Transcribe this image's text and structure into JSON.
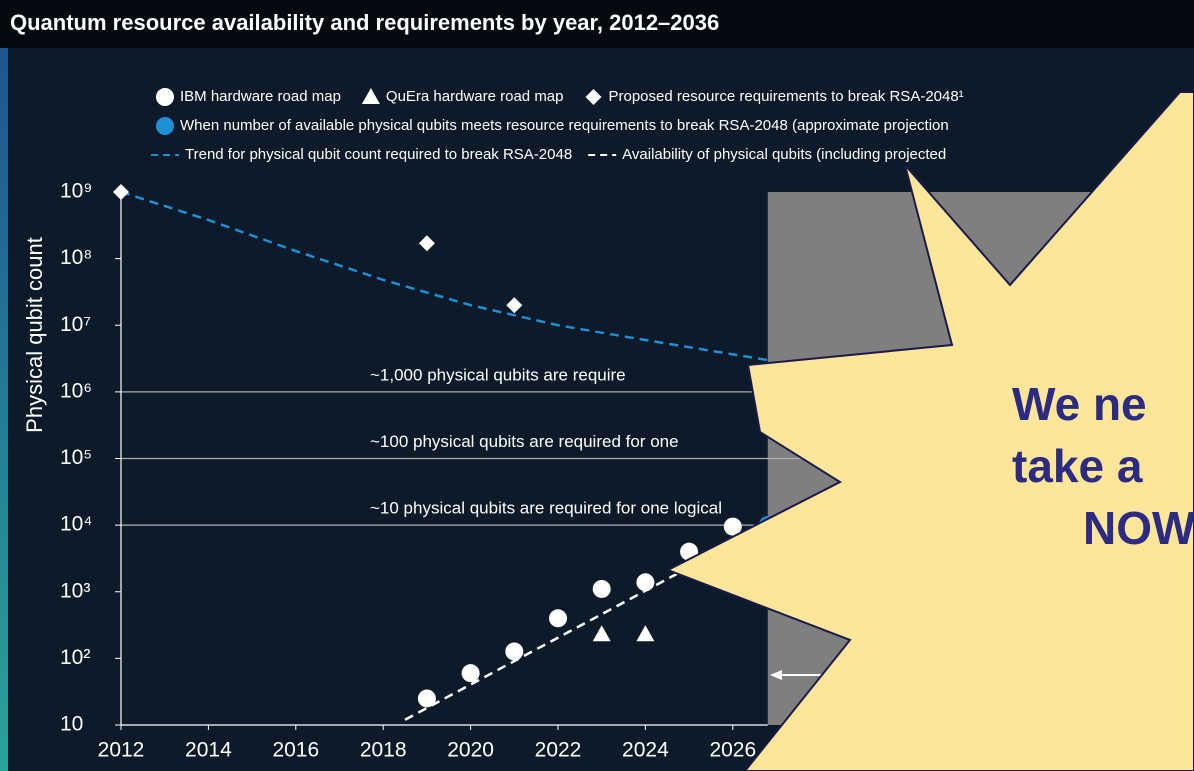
{
  "chart_data": {
    "type": "scatter",
    "title": "Quantum resource availability and requirements by year, 2012–2036",
    "y_label": "Physical qubit count",
    "log_scale_y": true,
    "xlim": [
      2012,
      2036
    ],
    "xticks": [
      2012,
      2014,
      2016,
      2018,
      2020,
      2022,
      2024,
      2026
    ],
    "ylim": [
      10,
      1000000000
    ],
    "yticks": [
      10,
      {
        "value": 100,
        "label": "10²"
      },
      {
        "value": 1000,
        "label": "10³"
      },
      {
        "value": 10000,
        "label": "10⁴"
      },
      {
        "value": 100000,
        "label": "10⁵"
      },
      {
        "value": 1000000,
        "label": "10⁶"
      },
      {
        "value": 10000000,
        "label": "10⁷"
      },
      {
        "value": 100000000,
        "label": "10⁸"
      },
      {
        "value": 1000000000,
        "label": "10⁹"
      }
    ],
    "reference_lines": [
      {
        "value": 1000000,
        "label": "~1,000 physical qubits are require"
      },
      {
        "value": 100000,
        "label": "~100 physical qubits are required for one"
      },
      {
        "value": 10000,
        "label": "~10 physical qubits are required for one logical"
      }
    ],
    "shade_from_x": 2026.8,
    "series": [
      {
        "name": "IBM hardware road map",
        "marker": "circle",
        "color": "#ffffff",
        "x": [
          2019,
          2020,
          2021,
          2022,
          2023,
          2024,
          2025,
          2026
        ],
        "values": [
          25,
          60,
          127,
          400,
          1100,
          1386,
          4000,
          9500
        ]
      },
      {
        "name": "QuEra hardware road map",
        "marker": "triangle",
        "color": "#ffffff",
        "x": [
          2023,
          2024
        ],
        "values": [
          230,
          230
        ]
      },
      {
        "name": "Proposed resource requirements to break RSA-2048¹",
        "marker": "diamond",
        "color": "#ffffff",
        "x": [
          2012,
          2019,
          2021
        ],
        "values": [
          1000000000,
          170000000,
          20000000
        ]
      },
      {
        "name": "When number of available physical qubits meets resource requirements to break RSA-2048 (approximate projection",
        "marker": "circle",
        "color": "#1e90d6",
        "x": [
          2026.8
        ],
        "values": [
          10000
        ]
      },
      {
        "name": "Trend for physical qubit count required to break RSA-2048",
        "marker": "dashed-line",
        "color": "#1e90d6",
        "x": [
          2012,
          2014,
          2016,
          2018,
          2020,
          2022,
          2024,
          2026.8
        ],
        "values": [
          1000000000,
          380000000,
          130000000,
          48000000,
          20000000,
          10000000,
          6000000,
          3000000
        ]
      },
      {
        "name": "Availability of physical qubits (including projected",
        "marker": "dashed-line",
        "color": "#ffffff",
        "x": [
          2018.5,
          2026.8
        ],
        "values": [
          12,
          10000
        ]
      }
    ]
  },
  "callout": {
    "lines": [
      "We ne",
      "take a",
      "NOW"
    ]
  }
}
